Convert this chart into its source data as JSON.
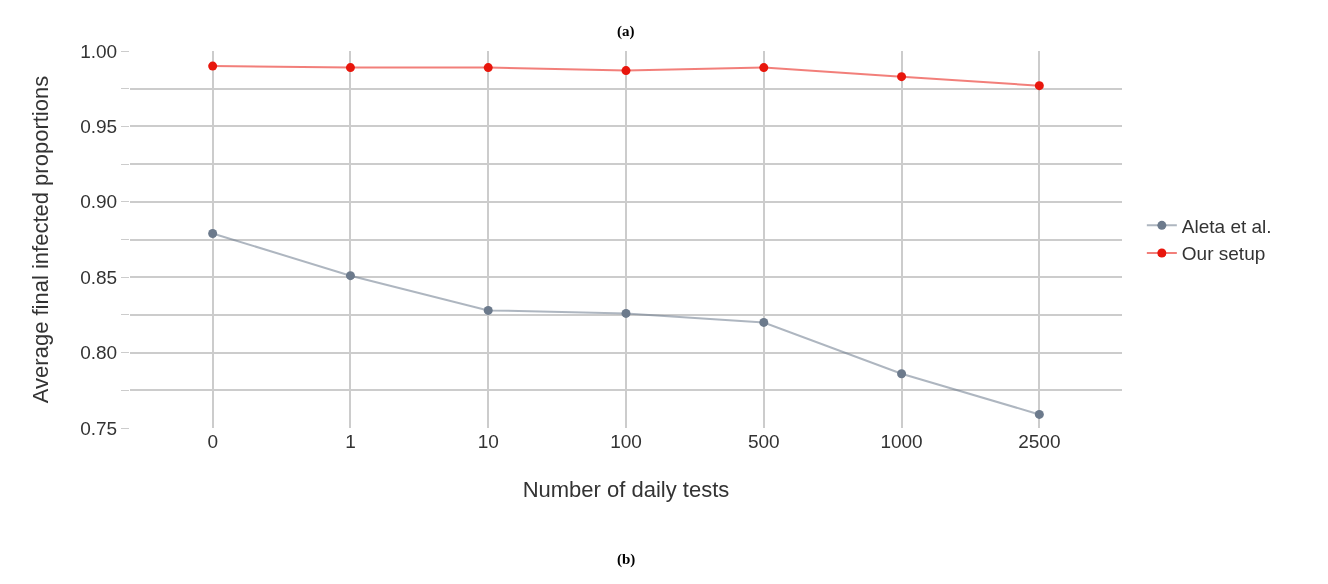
{
  "chart_data": {
    "type": "line",
    "title": "(a)",
    "xlabel": "Number of daily tests",
    "ylabel": "Average final infected proportions",
    "categories": [
      "0",
      "1",
      "10",
      "100",
      "500",
      "1000",
      "2500"
    ],
    "series": [
      {
        "name": "Aleta et al.",
        "color": "#6c7a8c",
        "values": [
          0.879,
          0.851,
          0.828,
          0.826,
          0.82,
          0.786,
          0.759
        ]
      },
      {
        "name": "Our setup",
        "color": "#e8160c",
        "values": [
          0.99,
          0.989,
          0.989,
          0.987,
          0.989,
          0.983,
          0.977
        ]
      }
    ],
    "ylim": [
      0.75,
      1.0
    ],
    "yticks": [
      0.75,
      {
        "value": 0.775,
        "label": null
      },
      {
        "value": 0.8,
        "label": "0.80"
      },
      {
        "value": 0.825,
        "label": null
      },
      0.85,
      {
        "value": 0.875,
        "label": null
      },
      {
        "value": 0.9,
        "label": "0.90"
      },
      {
        "value": 0.925,
        "label": null
      },
      0.95,
      {
        "value": 0.975,
        "label": null
      },
      {
        "value": 1.0,
        "label": "1.00"
      }
    ],
    "annotations": [
      "(b)"
    ],
    "grid": true,
    "legend": "right",
    "marker": "circle",
    "line_style": "solid"
  }
}
